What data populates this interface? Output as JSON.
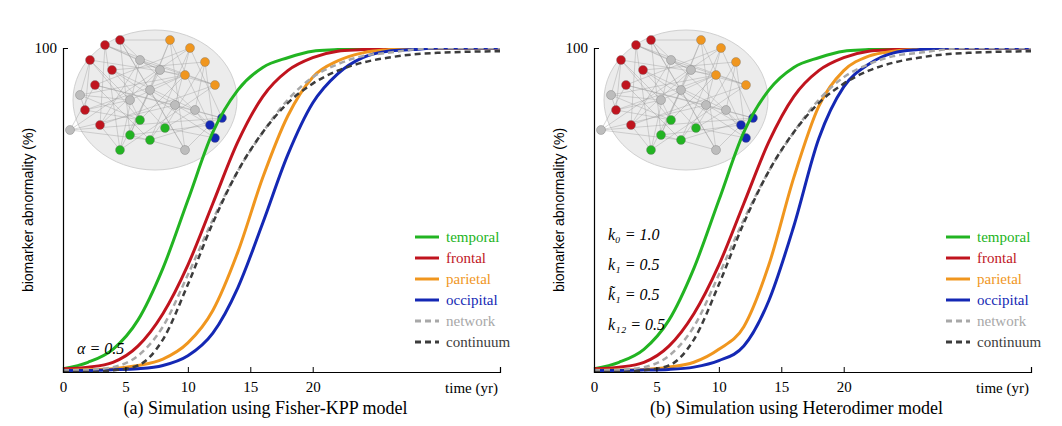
{
  "chart_data": [
    {
      "type": "line",
      "title": "(a) Simulation using Fisher-KPP model",
      "xlabel": "time (yr)",
      "ylabel": "biomarker abnormality (%)",
      "x": [
        0,
        2,
        4,
        6,
        8,
        10,
        12,
        14,
        16,
        18,
        20,
        22,
        24,
        26,
        28,
        30,
        32,
        35
      ],
      "xlim": [
        0,
        35
      ],
      "ylim": [
        0,
        100
      ],
      "xticks": [
        0,
        5,
        10,
        15,
        20
      ],
      "yticks": [
        100
      ],
      "legend": "lower right",
      "annotations": [
        "α = 0.5"
      ],
      "series": [
        {
          "name": "temporal",
          "color": "#22b422",
          "line_style": "solid",
          "values": [
            1,
            3,
            7,
            16,
            32,
            53,
            74,
            87,
            94,
            97,
            99,
            99.5,
            100,
            100,
            100,
            100,
            100,
            100
          ]
        },
        {
          "name": "frontal",
          "color": "#c0141e",
          "line_style": "solid",
          "values": [
            1,
            1.5,
            3,
            8,
            18,
            33,
            52,
            71,
            85,
            93,
            97,
            99,
            99.5,
            100,
            100,
            100,
            100,
            100
          ]
        },
        {
          "name": "parietal",
          "color": "#f0961e",
          "line_style": "solid",
          "values": [
            0.5,
            0.7,
            1,
            2,
            4,
            9,
            19,
            37,
            60,
            79,
            91,
            96,
            98.5,
            99.5,
            100,
            100,
            100,
            100
          ]
        },
        {
          "name": "occipital",
          "color": "#1428b4",
          "line_style": "solid",
          "values": [
            0.5,
            0.5,
            0.7,
            1,
            2,
            5,
            12,
            26,
            46,
            67,
            83,
            92,
            97,
            99,
            99.5,
            100,
            100,
            100
          ]
        },
        {
          "name": "network",
          "color": "#a8a8a8",
          "line_style": "dashed",
          "values": [
            0.5,
            0.7,
            1.5,
            5,
            14,
            30,
            47,
            62,
            74,
            84,
            91,
            95,
            97.5,
            98.5,
            99.5,
            100,
            100,
            100
          ]
        },
        {
          "name": "continuum",
          "color": "#3c3c3c",
          "line_style": "dashed",
          "values": [
            0,
            0,
            0.5,
            2,
            10,
            27,
            46,
            62,
            74,
            83,
            89,
            93,
            95.5,
            97,
            98,
            98.5,
            98.8,
            99
          ]
        }
      ]
    },
    {
      "type": "line",
      "title": "(b) Simulation using Heterodimer model",
      "xlabel": "time (yr)",
      "ylabel": "biomarker abnormality (%)",
      "x": [
        0,
        2,
        4,
        6,
        8,
        10,
        12,
        14,
        16,
        18,
        20,
        22,
        24,
        26,
        28,
        30,
        32,
        35
      ],
      "xlim": [
        0,
        35
      ],
      "ylim": [
        0,
        100
      ],
      "xticks": [
        0,
        5,
        10,
        15,
        20
      ],
      "yticks": [
        100
      ],
      "legend": "lower right",
      "annotations": [
        "k₀ = 1.0",
        "k₁ = 0.5",
        "k̃₁ = 0.5",
        "k₁₂ = 0.5"
      ],
      "series": [
        {
          "name": "temporal",
          "color": "#22b422",
          "line_style": "solid",
          "values": [
            1,
            3,
            7,
            16,
            32,
            53,
            74,
            87,
            94,
            97,
            99,
            99.5,
            100,
            100,
            100,
            100,
            100,
            100
          ]
        },
        {
          "name": "frontal",
          "color": "#c0141e",
          "line_style": "solid",
          "values": [
            1,
            1.5,
            3,
            8,
            18,
            33,
            52,
            71,
            85,
            93,
            97,
            99,
            99.5,
            100,
            100,
            100,
            100,
            100
          ]
        },
        {
          "name": "parietal",
          "color": "#f0961e",
          "line_style": "solid",
          "values": [
            0.5,
            0.6,
            0.8,
            1.5,
            3,
            7,
            14,
            33,
            60,
            82,
            93,
            97.5,
            99,
            99.7,
            100,
            100,
            100,
            100
          ]
        },
        {
          "name": "occipital",
          "color": "#1428b4",
          "line_style": "solid",
          "values": [
            0.5,
            0.5,
            0.6,
            0.8,
            1.5,
            3.5,
            8,
            22,
            45,
            72,
            88,
            95,
            98.5,
            99.5,
            100,
            100,
            100,
            100
          ]
        },
        {
          "name": "network",
          "color": "#a8a8a8",
          "line_style": "dashed",
          "values": [
            0.5,
            0.7,
            1.5,
            5,
            14,
            30,
            47,
            62,
            74,
            84,
            91,
            95,
            97.5,
            98.5,
            99.5,
            100,
            100,
            100
          ]
        },
        {
          "name": "continuum",
          "color": "#3c3c3c",
          "line_style": "dashed",
          "values": [
            0,
            0,
            0.5,
            2,
            10,
            27,
            46,
            62,
            74,
            83,
            89,
            93,
            95.5,
            97,
            98,
            98.5,
            98.8,
            99
          ]
        }
      ]
    }
  ]
}
